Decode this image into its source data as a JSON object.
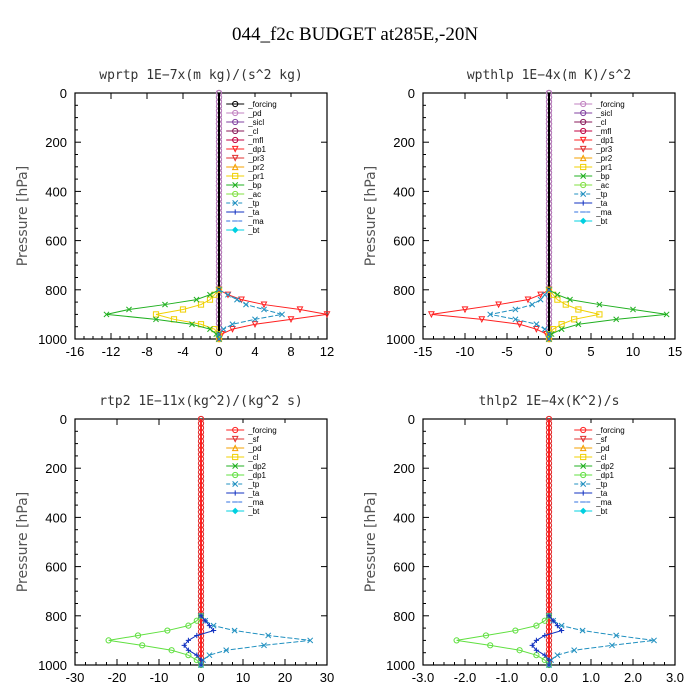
{
  "figure_title": "044_f2c  BUDGET at285E,-20N",
  "chart_data": [
    {
      "type": "line",
      "title": "wprtp   1E−7x(m kg)/(s^2 kg)",
      "ylabel": "Pressure [hPa]",
      "xlim": [
        -16,
        12
      ],
      "ylim": [
        1000,
        0
      ],
      "xticks": [
        "-16",
        "-12",
        "-8",
        "-4",
        "0",
        "4",
        "8",
        "12"
      ],
      "yticks": [
        "0",
        "200",
        "400",
        "600",
        "800",
        "1000"
      ],
      "grid": false,
      "legend": "top-right",
      "pressure": [
        800,
        820,
        840,
        860,
        880,
        900,
        920,
        940,
        960,
        980,
        1000
      ],
      "series": [
        {
          "name": "_forcing",
          "color": "#000000",
          "marker": "o",
          "values": [
            0,
            0,
            0,
            0,
            0,
            0,
            0,
            0,
            0,
            0,
            0
          ]
        },
        {
          "name": "_pd",
          "color": "#c080c0",
          "marker": "o",
          "values": [
            0,
            0,
            0,
            0,
            0,
            0,
            0,
            0,
            0,
            0,
            0
          ]
        },
        {
          "name": "_sicl",
          "color": "#8040a0",
          "marker": "o",
          "values": [
            0,
            0,
            0,
            0,
            0,
            0,
            0,
            0,
            0,
            0,
            0
          ]
        },
        {
          "name": "_cl",
          "color": "#8a1a5a",
          "marker": "o",
          "values": [
            0,
            0,
            0,
            0,
            0,
            0,
            0,
            0,
            0,
            0,
            0
          ]
        },
        {
          "name": "_mfl",
          "color": "#c00040",
          "marker": "o",
          "values": [
            0,
            0,
            0,
            0,
            0,
            0,
            0,
            0,
            0,
            0,
            0
          ]
        },
        {
          "name": "_dp1",
          "color": "#ff2020",
          "marker": "v",
          "values": [
            0,
            1,
            2.5,
            5,
            9,
            12,
            8,
            4,
            1.5,
            0.3,
            0
          ]
        },
        {
          "name": "_pr3",
          "color": "#e03030",
          "marker": "v",
          "values": [
            0,
            0,
            0,
            0,
            0,
            0,
            0,
            0,
            0,
            0,
            0
          ]
        },
        {
          "name": "_pr2",
          "color": "#f5a000",
          "marker": "^",
          "values": [
            0,
            0,
            0,
            0,
            0,
            0,
            0,
            0,
            0,
            0,
            0
          ]
        },
        {
          "name": "_pr1",
          "color": "#f0d000",
          "marker": "s",
          "values": [
            0,
            -0.5,
            -1,
            -2,
            -4,
            -7,
            -5,
            -2,
            -0.5,
            0,
            0
          ]
        },
        {
          "name": "_bp",
          "color": "#20b020",
          "marker": "x",
          "values": [
            0,
            -1,
            -2.5,
            -6,
            -10,
            -12.5,
            -7,
            -3,
            -1,
            -0.3,
            0
          ]
        },
        {
          "name": "_ac",
          "color": "#80e040",
          "marker": "o",
          "values": [
            0,
            0,
            0,
            0,
            0,
            0,
            0,
            0,
            0,
            0,
            0
          ]
        },
        {
          "name": "_tp",
          "color": "#2090c0",
          "marker": "x",
          "values": [
            0,
            1,
            2,
            3,
            5,
            7,
            4,
            1.5,
            0.5,
            0,
            0
          ]
        },
        {
          "name": "_ta",
          "color": "#1030c0",
          "marker": "+",
          "values": [
            0,
            0,
            0,
            0,
            0,
            0,
            0,
            0,
            0,
            0,
            0
          ]
        },
        {
          "name": "_ma",
          "color": "#3070e0",
          "marker": "-",
          "values": [
            0,
            0,
            0,
            0,
            0,
            0,
            0,
            0,
            0,
            0,
            0
          ]
        },
        {
          "name": "_bt",
          "color": "#00d0e0",
          "marker": "d",
          "values": [
            0,
            0,
            0,
            0,
            0,
            0,
            0,
            0,
            0,
            0,
            0
          ]
        }
      ]
    },
    {
      "type": "line",
      "title": "wpthlp   1E−4x(m K)/s^2",
      "ylabel": "Pressure [hPa]",
      "xlim": [
        -15,
        15
      ],
      "ylim": [
        1000,
        0
      ],
      "xticks": [
        "-15",
        "-10",
        "-5",
        "0",
        "5",
        "10",
        "15"
      ],
      "yticks": [
        "0",
        "200",
        "400",
        "600",
        "800",
        "1000"
      ],
      "grid": false,
      "legend": "top-right",
      "pressure": [
        800,
        820,
        840,
        860,
        880,
        900,
        920,
        940,
        960,
        980,
        1000
      ],
      "series": [
        {
          "name": "_forcing",
          "color": "#c080c0",
          "marker": "o",
          "values": [
            0,
            0,
            0,
            0,
            0,
            0,
            0,
            0,
            0,
            0,
            0
          ]
        },
        {
          "name": "_sicl",
          "color": "#8040a0",
          "marker": "o",
          "values": [
            0,
            0,
            0,
            0,
            0,
            0,
            0,
            0,
            0,
            0,
            0
          ]
        },
        {
          "name": "_cl",
          "color": "#8a1a5a",
          "marker": "o",
          "values": [
            0,
            0,
            0,
            0,
            0,
            0,
            0,
            0,
            0,
            0,
            0
          ]
        },
        {
          "name": "_mfl",
          "color": "#c00040",
          "marker": "o",
          "values": [
            0,
            0,
            0,
            0,
            0,
            0,
            0,
            0,
            0,
            0,
            0
          ]
        },
        {
          "name": "_dp1",
          "color": "#ff2020",
          "marker": "v",
          "values": [
            0,
            -1,
            -2.5,
            -6,
            -10,
            -14,
            -8,
            -3.5,
            -1.5,
            -0.3,
            0
          ]
        },
        {
          "name": "_pr3",
          "color": "#e03030",
          "marker": "v",
          "values": [
            0,
            0,
            0,
            0,
            0,
            0,
            0,
            0,
            0,
            0,
            0
          ]
        },
        {
          "name": "_pr2",
          "color": "#f5a000",
          "marker": "^",
          "values": [
            0,
            0,
            0,
            0,
            0,
            0,
            0,
            0,
            0,
            0,
            0
          ]
        },
        {
          "name": "_pr1",
          "color": "#f0d000",
          "marker": "s",
          "values": [
            0,
            0.5,
            1,
            2,
            3.5,
            6,
            3,
            1.5,
            0.5,
            0,
            0
          ]
        },
        {
          "name": "_bp",
          "color": "#20b020",
          "marker": "x",
          "values": [
            0,
            1,
            2.5,
            6,
            10,
            14,
            8,
            3.5,
            1.5,
            0.3,
            0
          ]
        },
        {
          "name": "_ac",
          "color": "#80e040",
          "marker": "o",
          "values": [
            0,
            0,
            0,
            0,
            0,
            0,
            0,
            0,
            0,
            0,
            0
          ]
        },
        {
          "name": "_tp",
          "color": "#2090c0",
          "marker": "x",
          "values": [
            0,
            -0.5,
            -1,
            -2,
            -4,
            -7,
            -4,
            -1.5,
            -0.5,
            0,
            0
          ]
        },
        {
          "name": "_ta",
          "color": "#1030c0",
          "marker": "+",
          "values": [
            0,
            0,
            0,
            0,
            0,
            0,
            0,
            0,
            0,
            0,
            0
          ]
        },
        {
          "name": "_ma",
          "color": "#3070e0",
          "marker": "-",
          "values": [
            0,
            0,
            0,
            0,
            0,
            0,
            0,
            0,
            0,
            0,
            0
          ]
        },
        {
          "name": "_bt",
          "color": "#00d0e0",
          "marker": "d",
          "values": [
            0,
            0,
            0,
            0,
            0,
            0,
            0,
            0,
            0,
            0,
            0
          ]
        }
      ]
    },
    {
      "type": "line",
      "title": "rtp2   1E−11x(kg^2)/(kg^2 s)",
      "ylabel": "Pressure [hPa]",
      "xlim": [
        -30,
        30
      ],
      "ylim": [
        1000,
        0
      ],
      "xticks": [
        "-30",
        "-20",
        "-10",
        "0",
        "10",
        "20",
        "30"
      ],
      "yticks": [
        "0",
        "200",
        "400",
        "600",
        "800",
        "1000"
      ],
      "grid": false,
      "legend": "top-right",
      "pressure": [
        800,
        820,
        840,
        860,
        880,
        900,
        920,
        940,
        960,
        980,
        1000
      ],
      "series": [
        {
          "name": "_forcing",
          "color": "#ff2020",
          "marker": "o",
          "values": [
            0,
            0,
            0,
            0,
            0,
            0,
            0,
            0,
            0,
            0,
            0
          ]
        },
        {
          "name": "_sf",
          "color": "#e03030",
          "marker": "v",
          "values": [
            0,
            0,
            0,
            0,
            0,
            0,
            0,
            0,
            0,
            0,
            0
          ]
        },
        {
          "name": "_pd",
          "color": "#f5a000",
          "marker": "^",
          "values": [
            0,
            0,
            0,
            0,
            0,
            0,
            0,
            0,
            0,
            0,
            0
          ]
        },
        {
          "name": "_cl",
          "color": "#f0d000",
          "marker": "s",
          "values": [
            0,
            0,
            0,
            0,
            0,
            0,
            0,
            0,
            0,
            0,
            0
          ]
        },
        {
          "name": "_dp2",
          "color": "#20b020",
          "marker": "x",
          "values": [
            0,
            0,
            0,
            0,
            0,
            0,
            0,
            0,
            0,
            0,
            0
          ]
        },
        {
          "name": "_dp1",
          "color": "#60e040",
          "marker": "o",
          "values": [
            0,
            -1,
            -3,
            -8,
            -15,
            -22,
            -14,
            -7,
            -3,
            -1,
            0
          ]
        },
        {
          "name": "_tp",
          "color": "#2090c0",
          "marker": "x",
          "values": [
            0,
            1,
            3,
            8,
            16,
            26,
            15,
            6,
            2,
            0.5,
            0
          ]
        },
        {
          "name": "_ta",
          "color": "#1030c0",
          "marker": "+",
          "values": [
            0,
            1,
            2,
            3,
            -1,
            -3,
            -4,
            -3,
            -1,
            0,
            0
          ]
        },
        {
          "name": "_ma",
          "color": "#3070e0",
          "marker": "-",
          "values": [
            0,
            0,
            0,
            0,
            0,
            0,
            0,
            0,
            0,
            0,
            0
          ]
        },
        {
          "name": "_bt",
          "color": "#00d0e0",
          "marker": "d",
          "values": [
            0,
            0,
            0,
            0,
            0,
            0,
            0,
            0,
            0,
            0,
            0
          ]
        }
      ]
    },
    {
      "type": "line",
      "title": "thlp2   1E−4x(K^2)/s",
      "ylabel": "Pressure [hPa]",
      "xlim": [
        -3,
        3
      ],
      "ylim": [
        1000,
        0
      ],
      "xticks": [
        "-3.0",
        "-2.0",
        "-1.0",
        "0.0",
        "1.0",
        "2.0",
        "3.0"
      ],
      "yticks": [
        "0",
        "200",
        "400",
        "600",
        "800",
        "1000"
      ],
      "grid": false,
      "legend": "top-right",
      "pressure": [
        800,
        820,
        840,
        860,
        880,
        900,
        920,
        940,
        960,
        980,
        1000
      ],
      "series": [
        {
          "name": "_forcing",
          "color": "#ff2020",
          "marker": "o",
          "values": [
            0,
            0,
            0,
            0,
            0,
            0,
            0,
            0,
            0,
            0,
            0
          ]
        },
        {
          "name": "_sf",
          "color": "#e03030",
          "marker": "v",
          "values": [
            0,
            0,
            0,
            0,
            0,
            0,
            0,
            0,
            0,
            0,
            0
          ]
        },
        {
          "name": "_pd",
          "color": "#f5a000",
          "marker": "^",
          "values": [
            0,
            0,
            0,
            0,
            0,
            0,
            0,
            0,
            0,
            0,
            0
          ]
        },
        {
          "name": "_cl",
          "color": "#f0d000",
          "marker": "s",
          "values": [
            0,
            0,
            0,
            0,
            0,
            0,
            0,
            0,
            0,
            0,
            0
          ]
        },
        {
          "name": "_dp2",
          "color": "#20b020",
          "marker": "x",
          "values": [
            0,
            0,
            0,
            0,
            0,
            0,
            0,
            0,
            0,
            0,
            0
          ]
        },
        {
          "name": "_dp1",
          "color": "#60e040",
          "marker": "o",
          "values": [
            0,
            -0.1,
            -0.3,
            -0.8,
            -1.5,
            -2.2,
            -1.4,
            -0.7,
            -0.3,
            -0.1,
            0
          ]
        },
        {
          "name": "_tp",
          "color": "#2090c0",
          "marker": "x",
          "values": [
            0,
            0.1,
            0.3,
            0.8,
            1.6,
            2.5,
            1.5,
            0.6,
            0.2,
            0.05,
            0
          ]
        },
        {
          "name": "_ta",
          "color": "#1030c0",
          "marker": "+",
          "values": [
            0,
            0.1,
            0.2,
            0.3,
            -0.1,
            -0.3,
            -0.4,
            -0.3,
            -0.1,
            0,
            0
          ]
        },
        {
          "name": "_ma",
          "color": "#3070e0",
          "marker": "-",
          "values": [
            0,
            0,
            0,
            0,
            0,
            0,
            0,
            0,
            0,
            0,
            0
          ]
        },
        {
          "name": "_bt",
          "color": "#00d0e0",
          "marker": "d",
          "values": [
            0,
            0,
            0,
            0,
            0,
            0,
            0,
            0,
            0,
            0,
            0
          ]
        }
      ]
    }
  ]
}
